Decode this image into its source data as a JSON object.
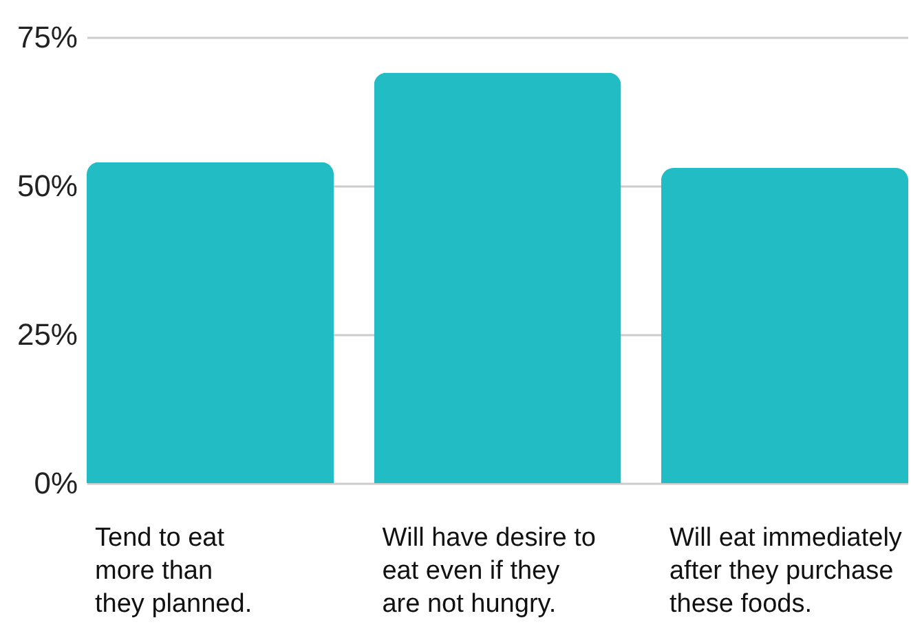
{
  "chart_data": {
    "type": "bar",
    "categories": [
      "Tend to eat\nmore than\nthey planned.",
      "Will have desire to\neat even if they\nare not hungry.",
      "Will eat immediately\nafter they purchase\nthese foods."
    ],
    "values": [
      54,
      69,
      53
    ],
    "color": "#22bcc4",
    "ylim": [
      0,
      75
    ],
    "yticks": [
      {
        "value": 0,
        "label": "0%"
      },
      {
        "value": 25,
        "label": "25%"
      },
      {
        "value": 50,
        "label": "50%"
      },
      {
        "value": 75,
        "label": "75%"
      }
    ],
    "grid": "y"
  }
}
